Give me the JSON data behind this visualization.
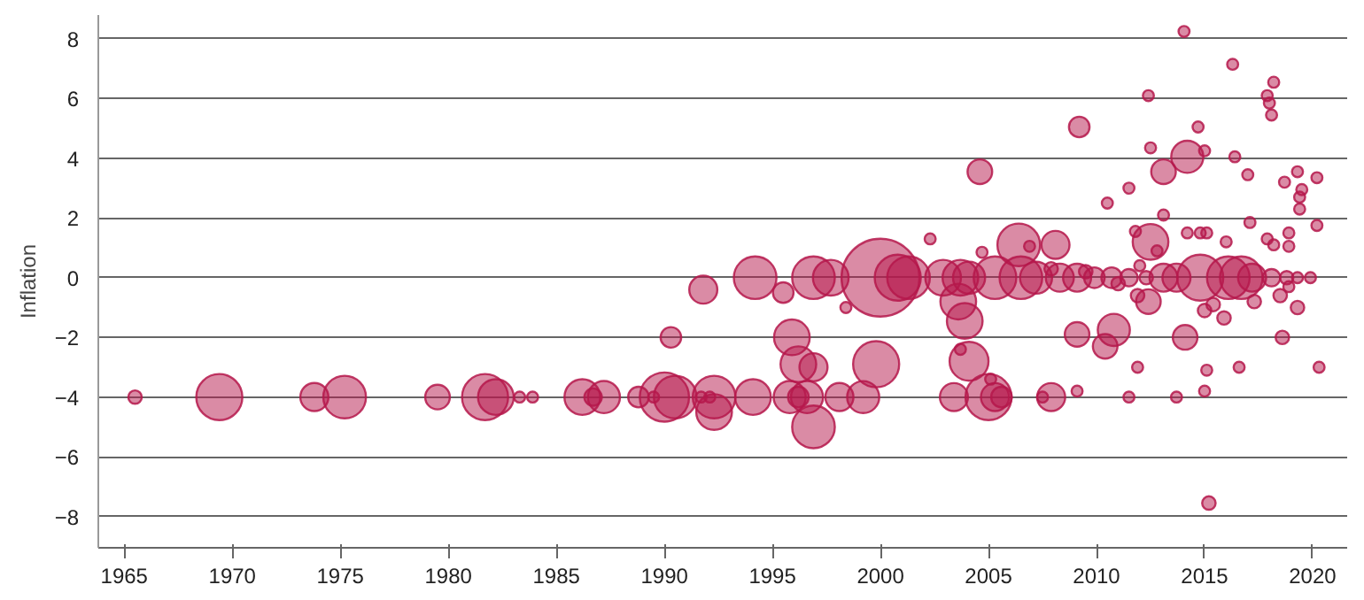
{
  "chart_data": {
    "type": "bubble",
    "ylabel": "Inflation",
    "x": [
      1965.5,
      1969.4,
      1973.8,
      1975.2,
      1979.5,
      1981.7,
      1982.2,
      1983.3,
      1983.9,
      1986.2,
      1986.7,
      1987.2,
      1988.8,
      1989.5,
      1990.0,
      1990.5,
      1991.7,
      1992.1,
      1992.3,
      1992.3,
      1991.8,
      1990.3,
      1994.1,
      1995.8,
      1996.2,
      1996.6,
      1998.1,
      1999.2,
      2003.4,
      2005.0,
      2005.3,
      2005.6,
      2007.5,
      2007.9,
      2009.1,
      2011.5,
      2013.7,
      2015.0,
      1996.2,
      1996.9,
      1999.8,
      2004.1,
      2003.7,
      2005.1,
      2011.9,
      2015.1,
      2016.6,
      2020.3,
      1995.9,
      2009.1,
      2010.8,
      2010.4,
      2014.1,
      2018.6,
      1996.9,
      2015.2,
      1995.5,
      1998.4,
      2003.6,
      2003.9,
      2011.9,
      2012.4,
      2015.0,
      2015.4,
      2015.9,
      2017.3,
      2018.5,
      2019.3,
      2018.9,
      2014.05,
      2016.3,
      2018.2,
      2017.9,
      2018.0,
      2018.1,
      2012.4,
      2009.2,
      2014.7,
      2012.5,
      2014.2,
      2015.0,
      2016.4,
      2013.1,
      2004.6,
      2017.0,
      2019.3,
      2020.2,
      2018.7,
      2019.5,
      2019.4,
      2019.4,
      2011.5,
      2010.5,
      2013.1,
      2017.1,
      2020.2,
      2011.8,
      2014.2,
      2014.8,
      2015.1,
      2018.9,
      2002.3,
      2016.0,
      2017.9,
      2018.2,
      2018.9,
      2012.5,
      2012.8,
      2006.4,
      2006.9,
      2008.1,
      2004.7,
      1994.2,
      1996.9,
      1997.7,
      2000.0,
      2000.8,
      2001.3,
      2002.9,
      2003.7,
      2004.1,
      2005.3,
      2006.5,
      2007.2,
      2008.3,
      2009.1,
      2009.9,
      2010.7,
      2011.5,
      2012.3,
      2013.1,
      2013.7,
      2014.8,
      2016.1,
      2016.7,
      2017.2,
      2018.1,
      2018.8,
      2019.3,
      2019.9,
      2007.9,
      2009.5,
      2011.0,
      2012.0
    ],
    "values": [
      -4,
      -4,
      -4,
      -4,
      -4,
      -4,
      -4,
      -4,
      -4,
      -4,
      -4,
      -4,
      -4,
      -4,
      -4,
      -4,
      -4,
      -4,
      -4,
      -4.5,
      -0.4,
      -2,
      -4,
      -4,
      -4,
      -4,
      -4,
      -4,
      -4,
      -4,
      -4,
      -4,
      -4,
      -4,
      -3.8,
      -4,
      -4,
      -3.8,
      -2.9,
      -3,
      -2.9,
      -2.8,
      -2.4,
      -3.4,
      -3,
      -3.1,
      -3,
      -3,
      -2,
      -1.9,
      -1.75,
      -2.3,
      -2,
      -2,
      -5,
      -7.55,
      -0.5,
      -1,
      -0.8,
      -1.45,
      -0.6,
      -0.8,
      -1.1,
      -0.9,
      -1.35,
      -0.8,
      -0.6,
      -1,
      -0.3,
      8.25,
      7.15,
      6.55,
      6.1,
      5.85,
      5.45,
      6.1,
      5.05,
      5.05,
      4.35,
      4.05,
      4.25,
      4.05,
      3.55,
      3.55,
      3.45,
      3.55,
      3.35,
      3.2,
      2.95,
      2.7,
      2.3,
      3,
      2.5,
      2.1,
      1.85,
      1.75,
      1.55,
      1.5,
      1.5,
      1.5,
      1.5,
      1.3,
      1.2,
      1.3,
      1.1,
      1.05,
      1.2,
      0.9,
      1.1,
      1.05,
      1.1,
      0.85,
      0,
      0,
      0,
      0,
      0,
      0,
      0,
      0,
      0,
      0,
      0,
      0,
      0,
      0,
      0,
      0,
      0,
      0,
      0,
      0,
      0,
      0,
      0,
      0,
      0,
      0,
      0,
      0,
      0.3,
      0.2,
      -0.2,
      0.4
    ],
    "sizes": [
      0.03,
      0.35,
      0.13,
      0.3,
      0.1,
      0.35,
      0.21,
      0.02,
      0.02,
      0.21,
      0.05,
      0.17,
      0.07,
      0.02,
      0.4,
      0.3,
      0.02,
      0.02,
      0.3,
      0.21,
      0.13,
      0.07,
      0.21,
      0.17,
      0.07,
      0.17,
      0.13,
      0.17,
      0.13,
      0.35,
      0.13,
      0.07,
      0.02,
      0.13,
      0.02,
      0.02,
      0.02,
      0.02,
      0.21,
      0.13,
      0.35,
      0.25,
      0.02,
      0.02,
      0.02,
      0.02,
      0.02,
      0.02,
      0.21,
      0.1,
      0.17,
      0.1,
      0.1,
      0.03,
      0.3,
      0.03,
      0.07,
      0.02,
      0.21,
      0.21,
      0.03,
      0.1,
      0.03,
      0.03,
      0.03,
      0.03,
      0.03,
      0.03,
      0.02,
      0.02,
      0.02,
      0.02,
      0.02,
      0.02,
      0.02,
      0.02,
      0.07,
      0.02,
      0.02,
      0.17,
      0.02,
      0.02,
      0.1,
      0.1,
      0.02,
      0.02,
      0.02,
      0.02,
      0.02,
      0.02,
      0.02,
      0.02,
      0.02,
      0.02,
      0.02,
      0.02,
      0.02,
      0.02,
      0.02,
      0.02,
      0.02,
      0.02,
      0.02,
      0.02,
      0.02,
      0.02,
      0.21,
      0.02,
      0.3,
      0.02,
      0.13,
      0.02,
      0.3,
      0.3,
      0.21,
      1,
      0.35,
      0.3,
      0.21,
      0.21,
      0.17,
      0.3,
      0.3,
      0.17,
      0.13,
      0.13,
      0.07,
      0.07,
      0.05,
      0.03,
      0.13,
      0.13,
      0.35,
      0.3,
      0.3,
      0.13,
      0.05,
      0.03,
      0.02,
      0.02,
      0.03,
      0.03,
      0.03,
      0.02
    ],
    "color": "#b5174b",
    "xlim": [
      1963.8,
      2021.6
    ],
    "xticks": [
      1965,
      1970,
      1975,
      1980,
      1985,
      1990,
      1995,
      2000,
      2005,
      2010,
      2015,
      2020
    ],
    "ylim": [
      -9.05,
      8.8
    ],
    "yticks": [
      -8,
      -6,
      -4,
      -2,
      0,
      2,
      4,
      6,
      8
    ],
    "grid": "y"
  }
}
